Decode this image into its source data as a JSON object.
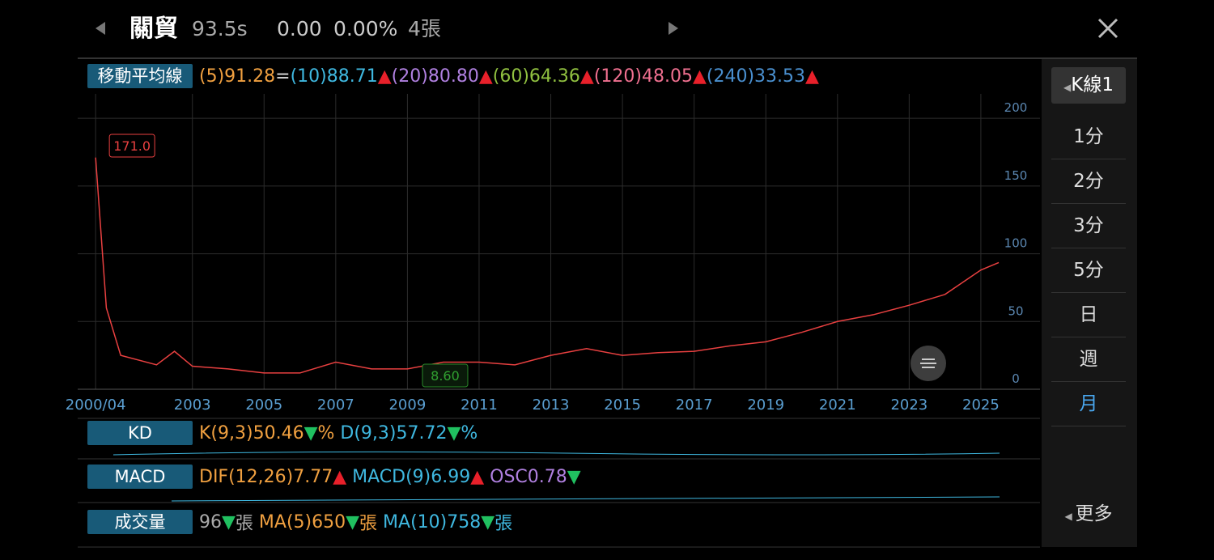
{
  "header": {
    "name": "關貿",
    "price": "93.5s",
    "change": "0.00",
    "change_pct": "0.00%",
    "volume": "4張"
  },
  "ma_legend": {
    "label": "移動平均線",
    "items": [
      {
        "text": "(5)91.28",
        "color": "#f0a040"
      },
      {
        "text": "=",
        "color": "#dddddd"
      },
      {
        "text": "(10)88.71",
        "color": "#3fb8e0"
      },
      {
        "text": "▲",
        "color": "#e8202a"
      },
      {
        "text": "(20)80.80",
        "color": "#b080e0"
      },
      {
        "text": "▲",
        "color": "#e8202a"
      },
      {
        "text": "(60)64.36",
        "color": "#90c040"
      },
      {
        "text": "▲",
        "color": "#e8202a"
      },
      {
        "text": "(120)48.05",
        "color": "#f07090"
      },
      {
        "text": "▲",
        "color": "#e8202a"
      },
      {
        "text": "(240)33.53",
        "color": "#4a90d0"
      },
      {
        "text": "▲",
        "color": "#e8202a"
      }
    ]
  },
  "chart_data": {
    "type": "line",
    "x": [
      2000.3,
      2000.6,
      2001,
      2002,
      2002.5,
      2003,
      2004,
      2005,
      2006,
      2007,
      2008,
      2009,
      2010,
      2011,
      2012,
      2013,
      2014,
      2015,
      2016,
      2017,
      2018,
      2019,
      2020,
      2021,
      2022,
      2023,
      2024,
      2025,
      2025.5
    ],
    "values": [
      171,
      60,
      25,
      18,
      28,
      17,
      15,
      12,
      12,
      20,
      15,
      15,
      20,
      20,
      18,
      25,
      30,
      25,
      27,
      28,
      32,
      35,
      42,
      50,
      55,
      62,
      70,
      88,
      93.5
    ],
    "color": "#e84040",
    "xlim": [
      1999.8,
      2026.65
    ],
    "xticks": [
      {
        "value": 2000.3,
        "label": "2000/04"
      },
      2003,
      2005,
      2007,
      2009,
      2011,
      2013,
      2015,
      2017,
      2019,
      2021,
      2023,
      2025
    ],
    "ylim": [
      0,
      218
    ],
    "yticks": [
      0,
      50,
      100,
      150,
      200
    ],
    "grid": true,
    "annotations": [
      {
        "x": 2000.3,
        "value": 171,
        "label": "171.0"
      },
      {
        "x": 2006.1,
        "value": 8.6,
        "label": "8.60"
      }
    ]
  },
  "indicators": [
    {
      "label": "KD",
      "items": [
        {
          "text": "K(9,3)50.46",
          "color": "#f0a040"
        },
        {
          "text": "▼",
          "color": "#20c060"
        },
        {
          "text": "%",
          "color": "#f0a040"
        },
        {
          "text": " D(9,3)57.72",
          "color": "#3fb8e0"
        },
        {
          "text": "▼",
          "color": "#20c060"
        },
        {
          "text": "%",
          "color": "#3fb8e0"
        }
      ]
    },
    {
      "label": "MACD",
      "items": [
        {
          "text": "DIF(12,26)7.77",
          "color": "#f0a040"
        },
        {
          "text": "▲",
          "color": "#e8202a"
        },
        {
          "text": " MACD(9)6.99",
          "color": "#3fb8e0"
        },
        {
          "text": "▲",
          "color": "#e8202a"
        },
        {
          "text": " OSC0.78",
          "color": "#b080e0"
        },
        {
          "text": "▼",
          "color": "#20c060"
        }
      ]
    },
    {
      "label": "成交量",
      "items": [
        {
          "text": "96",
          "color": "#aaaaaa"
        },
        {
          "text": "▼",
          "color": "#20c060"
        },
        {
          "text": "張",
          "color": "#aaaaaa"
        },
        {
          "text": " MA(5)650",
          "color": "#f0a040"
        },
        {
          "text": "▼",
          "color": "#20c060"
        },
        {
          "text": "張",
          "color": "#f0a040"
        },
        {
          "text": " MA(10)758",
          "color": "#3fb8e0"
        },
        {
          "text": "▼",
          "color": "#20c060"
        },
        {
          "text": "張",
          "color": "#3fb8e0"
        }
      ]
    }
  ],
  "periods": {
    "current": "K線1",
    "options": [
      "1分",
      "2分",
      "3分",
      "5分",
      "日",
      "週",
      "月"
    ],
    "selected": 6,
    "more": "更多"
  }
}
